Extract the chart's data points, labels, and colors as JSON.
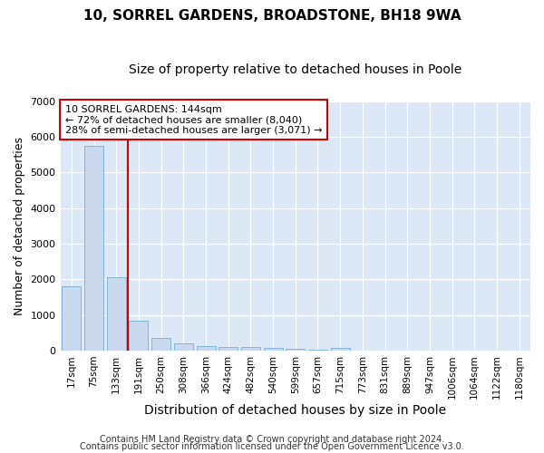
{
  "title1": "10, SORREL GARDENS, BROADSTONE, BH18 9WA",
  "title2": "Size of property relative to detached houses in Poole",
  "xlabel": "Distribution of detached houses by size in Poole",
  "ylabel": "Number of detached properties",
  "categories": [
    "17sqm",
    "75sqm",
    "133sqm",
    "191sqm",
    "250sqm",
    "308sqm",
    "366sqm",
    "424sqm",
    "482sqm",
    "540sqm",
    "599sqm",
    "657sqm",
    "715sqm",
    "773sqm",
    "831sqm",
    "889sqm",
    "947sqm",
    "1006sqm",
    "1064sqm",
    "1122sqm",
    "1180sqm"
  ],
  "values": [
    1800,
    5750,
    2050,
    830,
    360,
    210,
    120,
    110,
    90,
    60,
    45,
    25,
    70,
    4,
    3,
    3,
    2,
    2,
    2,
    2,
    2
  ],
  "bar_color": "#c8d8ee",
  "bar_edge_color": "#7aafd4",
  "vline_color": "#cc0000",
  "vline_pos": 2.5,
  "annotation_text": "10 SORREL GARDENS: 144sqm\n← 72% of detached houses are smaller (8,040)\n28% of semi-detached houses are larger (3,071) →",
  "annotation_box_color": "#cc0000",
  "ylim": [
    0,
    7000
  ],
  "yticks": [
    0,
    1000,
    2000,
    3000,
    4000,
    5000,
    6000,
    7000
  ],
  "footer1": "Contains HM Land Registry data © Crown copyright and database right 2024.",
  "footer2": "Contains public sector information licensed under the Open Government Licence v3.0.",
  "plot_bg_color": "#dce8f5",
  "fig_bg_color": "#ffffff",
  "grid_color": "#ffffff",
  "title1_fontsize": 11,
  "title2_fontsize": 10,
  "tick_fontsize": 7.5,
  "ylabel_fontsize": 9,
  "xlabel_fontsize": 10,
  "ann_fontsize": 8,
  "footer_fontsize": 7
}
